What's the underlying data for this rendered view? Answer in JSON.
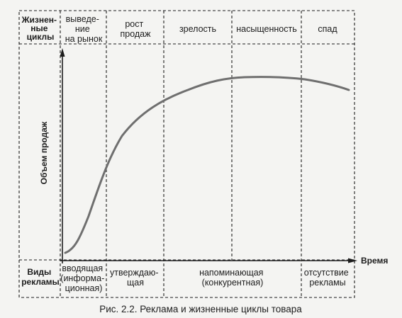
{
  "left_column": {
    "top": [
      "Жизнен-",
      "ные",
      "циклы"
    ],
    "bottom": [
      "Виды",
      "рекламы"
    ]
  },
  "y_axis_label": "Объем продаж",
  "x_axis_label": "Время",
  "stages": [
    {
      "id": "intro",
      "lines": [
        "выведе-",
        "ние",
        "на рынок"
      ]
    },
    {
      "id": "growth",
      "lines": [
        "рост",
        "продаж"
      ]
    },
    {
      "id": "maturity",
      "lines": [
        "зрелость"
      ]
    },
    {
      "id": "saturation",
      "lines": [
        "насыщенность"
      ]
    },
    {
      "id": "decline",
      "lines": [
        "спад"
      ]
    }
  ],
  "ad_types": [
    {
      "id": "informative",
      "lines": [
        "вводящая",
        "(информа-",
        "ционная)"
      ]
    },
    {
      "id": "persuasive",
      "lines": [
        "утверждаю-",
        "щая"
      ]
    },
    {
      "id": "reminder",
      "lines": [
        "напоминающая",
        "(конкурентная)"
      ]
    },
    {
      "id": "none",
      "lines": [
        "отсутствие",
        "рекламы"
      ]
    }
  ],
  "caption": "Рис. 2.2. Реклама и жизненные циклы товара",
  "colors": {
    "ink": "#1d1d1d",
    "curve": "#6f6f6f",
    "paper": "#f4f4f2"
  }
}
